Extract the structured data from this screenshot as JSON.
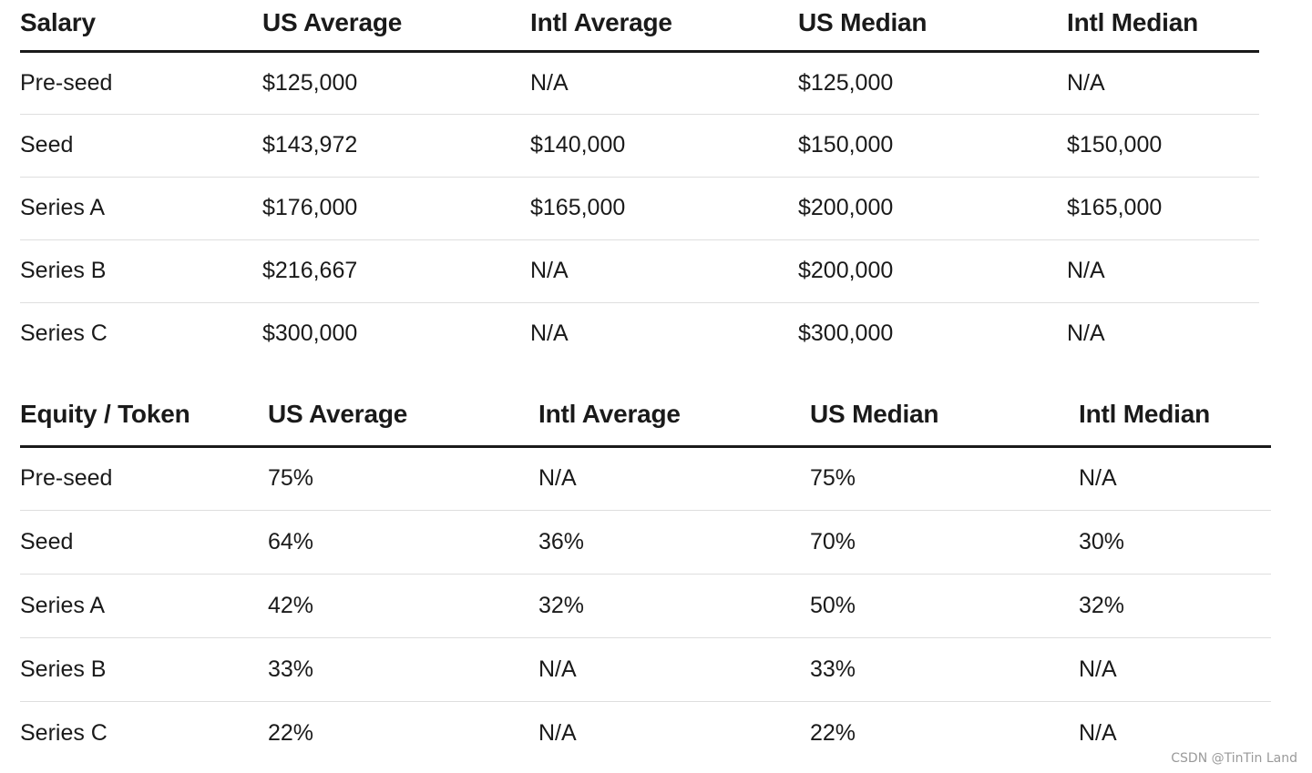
{
  "salary_table": {
    "headers": [
      "Salary",
      "US Average",
      "Intl Average",
      "US Median",
      "Intl Median"
    ],
    "rows": [
      [
        "Pre-seed",
        "$125,000",
        "N/A",
        "$125,000",
        "N/A"
      ],
      [
        "Seed",
        "$143,972",
        "$140,000",
        "$150,000",
        "$150,000"
      ],
      [
        "Series A",
        "$176,000",
        "$165,000",
        "$200,000",
        "$165,000"
      ],
      [
        "Series B",
        "$216,667",
        "N/A",
        "$200,000",
        "N/A"
      ],
      [
        "Series C",
        "$300,000",
        "N/A",
        "$300,000",
        "N/A"
      ]
    ]
  },
  "equity_table": {
    "headers": [
      "Equity / Token",
      "US Average",
      "Intl Average",
      "US Median",
      "Intl Median"
    ],
    "rows": [
      [
        "Pre-seed",
        "75%",
        "N/A",
        "75%",
        "N/A"
      ],
      [
        "Seed",
        "64%",
        "36%",
        "70%",
        "30%"
      ],
      [
        "Series A",
        "42%",
        "32%",
        "50%",
        "32%"
      ],
      [
        "Series B",
        "33%",
        "N/A",
        "33%",
        "N/A"
      ],
      [
        "Series C",
        "22%",
        "N/A",
        "22%",
        "N/A"
      ]
    ]
  },
  "watermark": "CSDN @TinTin Land"
}
